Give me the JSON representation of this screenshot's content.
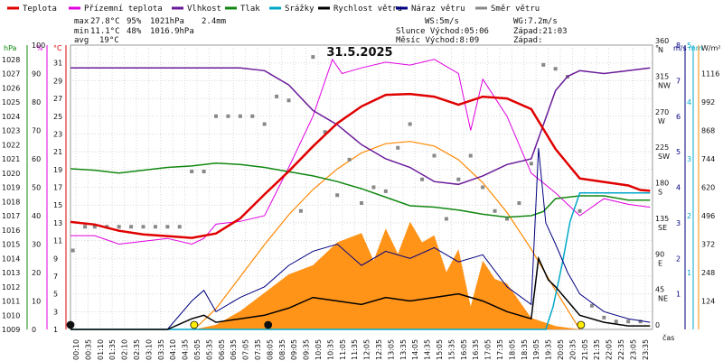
{
  "legend": [
    {
      "label": "Teplota",
      "color": "#e00000"
    },
    {
      "label": "Přízemní teplota",
      "color": "#e000e0"
    },
    {
      "label": "Vlhkost",
      "color": "#6a1b9a"
    },
    {
      "label": "Tlak",
      "color": "#118811"
    },
    {
      "label": "Srážky",
      "color": "#00a8c8"
    },
    {
      "label": "Rychlost větru",
      "color": "#000000"
    },
    {
      "label": "Náraz větru",
      "color": "#000080"
    },
    {
      "label": "Směr větru",
      "color": "#888888"
    }
  ],
  "stats": {
    "max_label": "max",
    "max_temp": "27.8°C",
    "max_hum": "95%",
    "max_press": "1021hPa",
    "max_rain": "2.4mm",
    "min_label": "min",
    "min_temp": "11.1°C",
    "min_hum": "48%",
    "min_press": "1016.9hPa",
    "avg_label": "avg",
    "avg_temp": "19°C",
    "ws": "WS:5m/s",
    "wg": "WG:7.2m/s",
    "sun": "Slunce Východ:05:06",
    "sunset": "Západ:21:03",
    "moon": "Měsíc  Východ:8:09",
    "moonset": "Západ:"
  },
  "chart_data": {
    "type": "line",
    "title": "31.5.2025",
    "x_label": "čas",
    "x_ticks": [
      "00:10",
      "00:35",
      "01:10",
      "01:35",
      "02:10",
      "02:35",
      "03:10",
      "03:35",
      "04:10",
      "04:35",
      "05:05",
      "05:35",
      "06:05",
      "06:35",
      "07:05",
      "07:35",
      "08:05",
      "08:35",
      "09:05",
      "09:35",
      "10:05",
      "10:35",
      "11:05",
      "11:35",
      "12:05",
      "12:35",
      "13:05",
      "13:35",
      "14:05",
      "14:35",
      "15:05",
      "15:35",
      "16:05",
      "16:35",
      "17:05",
      "17:35",
      "18:05",
      "18:35",
      "19:05",
      "19:35",
      "20:05",
      "20:35",
      "21:05",
      "21:35",
      "22:05",
      "22:35",
      "23:05",
      "23:35"
    ],
    "axes": {
      "hpa": {
        "label": "hPa",
        "range": [
          1009,
          1029
        ],
        "color": "#118811"
      },
      "pct": {
        "label": "%",
        "range": [
          0,
          100
        ],
        "color": "#e000e0"
      },
      "degC": {
        "label": "°C",
        "range": [
          1,
          33
        ],
        "color": "#e00000"
      },
      "dir": {
        "label": "°",
        "range": [
          0,
          360
        ],
        "ticks": [
          [
            0,
            ""
          ],
          [
            45,
            "NE"
          ],
          [
            90,
            "E"
          ],
          [
            135,
            "SE"
          ],
          [
            180,
            "S"
          ],
          [
            225,
            "SW"
          ],
          [
            270,
            "W"
          ],
          [
            315,
            "NW"
          ],
          [
            360,
            "N"
          ]
        ]
      },
      "ms": {
        "label": "m/s",
        "range": [
          0,
          8
        ],
        "color": "#000080"
      },
      "mm": {
        "label": "mm",
        "range": [
          0,
          5
        ],
        "color": "#00a8c8"
      },
      "wm2": {
        "label": "W/m²",
        "range": [
          0,
          1240
        ],
        "ticks": [
          124,
          248,
          372,
          496,
          620,
          744,
          868,
          992,
          1116
        ]
      }
    },
    "series": [
      {
        "name": "Teplota",
        "unit": "°C",
        "color": "#e00000",
        "x": [
          0,
          1,
          2,
          3,
          4,
          5,
          6,
          7,
          8,
          9,
          10,
          11,
          12,
          13,
          14,
          15,
          16,
          17,
          18,
          19,
          20,
          21,
          22,
          23,
          23.5,
          23.9
        ],
        "y": [
          13.1,
          12.8,
          12.1,
          11.7,
          11.5,
          11.3,
          11.8,
          13.5,
          16.2,
          18.8,
          21.6,
          24.2,
          26.1,
          27.4,
          27.5,
          27.2,
          26.3,
          27.2,
          27.0,
          25.8,
          21.3,
          18.0,
          17.6,
          17.2,
          16.7,
          16.6
        ]
      },
      {
        "name": "Přízemní teplota",
        "unit": "%",
        "color": "#e000e0",
        "x": [
          0,
          1,
          2,
          3,
          4,
          5,
          5.5,
          6,
          7,
          8,
          9,
          10,
          10.8,
          11.2,
          12,
          13,
          14,
          15,
          16,
          16.5,
          17,
          18,
          19,
          20,
          21,
          22,
          23,
          23.9
        ],
        "y": [
          33,
          33,
          30,
          31,
          32,
          30,
          32,
          37,
          38,
          40,
          57,
          75,
          95,
          90,
          92,
          94,
          93,
          95,
          90,
          70,
          88,
          75,
          55,
          48,
          40,
          46,
          44,
          43
        ]
      },
      {
        "name": "Vlhkost",
        "unit": "%",
        "color": "#6a1b9a",
        "x": [
          0,
          1,
          2,
          3,
          4,
          5,
          6,
          7,
          8,
          9,
          10,
          11,
          12,
          13,
          14,
          15,
          16,
          17,
          18,
          19,
          20,
          20.5,
          21,
          22,
          23,
          23.9
        ],
        "y": [
          92,
          92,
          92,
          92,
          92,
          92,
          92,
          92,
          91,
          86,
          77,
          72,
          65,
          60,
          57,
          52,
          51,
          54,
          58,
          60,
          84,
          89,
          91,
          90,
          91,
          92
        ]
      },
      {
        "name": "Tlak",
        "unit": "hPa",
        "color": "#118811",
        "x": [
          0,
          1,
          2,
          3,
          4,
          5,
          6,
          7,
          8,
          9,
          10,
          11,
          12,
          13,
          14,
          15,
          16,
          17,
          18,
          19,
          19.5,
          20,
          21,
          22,
          23,
          23.9
        ],
        "y": [
          1020.3,
          1020.2,
          1020.0,
          1020.2,
          1020.4,
          1020.5,
          1020.7,
          1020.6,
          1020.4,
          1020.1,
          1019.8,
          1019.4,
          1018.9,
          1018.3,
          1017.7,
          1017.6,
          1017.4,
          1017.1,
          1016.9,
          1017.0,
          1017.3,
          1018.2,
          1018.4,
          1018.4,
          1018.1,
          1018.1
        ]
      },
      {
        "name": "Srážky",
        "unit": "mm",
        "color": "#00a8c8",
        "x": [
          0,
          19.6,
          19.9,
          20.1,
          20.3,
          20.6,
          21,
          22,
          23,
          23.9
        ],
        "y": [
          0,
          0,
          0.4,
          0.8,
          1.2,
          1.9,
          2.4,
          2.4,
          2.4,
          2.4
        ]
      },
      {
        "name": "Rychlost větru",
        "unit": "m/s",
        "color": "#000000",
        "x": [
          0,
          4,
          5,
          5.5,
          6,
          7,
          8,
          9,
          10,
          11,
          12,
          13,
          14,
          15,
          16,
          17,
          18,
          19,
          19.3,
          19.7,
          20,
          20.5,
          21,
          22,
          23,
          23.9
        ],
        "y": [
          0,
          0,
          0.3,
          0.4,
          0.2,
          0.3,
          0.4,
          0.6,
          0.9,
          0.8,
          0.7,
          0.9,
          0.8,
          0.9,
          1.0,
          0.8,
          0.5,
          0.3,
          2.0,
          1.4,
          1.2,
          0.8,
          0.4,
          0.2,
          0.1,
          0.1
        ]
      },
      {
        "name": "Náraz větru",
        "unit": "m/s",
        "color": "#000080",
        "x": [
          0,
          4,
          5,
          5.5,
          6,
          7,
          8,
          9,
          10,
          11,
          12,
          13,
          14,
          15,
          16,
          17,
          18,
          19,
          19.3,
          19.6,
          20,
          20.5,
          21,
          22,
          23,
          23.9
        ],
        "y": [
          0,
          0,
          0.8,
          1.1,
          0.5,
          0.9,
          1.2,
          1.8,
          2.2,
          2.4,
          1.8,
          2.2,
          2.0,
          2.3,
          1.9,
          2.1,
          1.2,
          0.7,
          5.1,
          3.0,
          2.4,
          1.6,
          1.0,
          0.5,
          0.3,
          0.2
        ]
      },
      {
        "name": "Solar",
        "unit": "W/m²",
        "color": "#ff8800",
        "x": [
          5.1,
          6,
          7,
          8,
          9,
          10,
          11,
          12,
          12.5,
          13,
          13.5,
          14,
          14.5,
          15,
          15.5,
          16,
          16.5,
          17,
          17.5,
          18,
          19,
          20,
          21
        ],
        "y": [
          0,
          20,
          80,
          160,
          240,
          280,
          380,
          420,
          300,
          440,
          330,
          470,
          380,
          410,
          250,
          350,
          100,
          300,
          220,
          200,
          50,
          15,
          0
        ]
      },
      {
        "name": "Teoretický solar",
        "unit": "W/m²",
        "color": "#ff8800",
        "x": [
          5.1,
          6,
          7,
          8,
          9,
          10,
          11,
          12,
          13,
          14,
          15,
          16,
          17,
          18,
          19,
          20,
          21
        ],
        "y": [
          0,
          90,
          230,
          370,
          500,
          610,
          700,
          770,
          810,
          820,
          800,
          740,
          640,
          510,
          350,
          170,
          0
        ]
      }
    ],
    "wind_dir": {
      "unit": "°",
      "x": [
        0.1,
        0.6,
        1.0,
        1.5,
        2.0,
        2.5,
        3.0,
        3.5,
        4.0,
        4.5,
        5.0,
        5.5,
        6.0,
        6.5,
        7.0,
        7.5,
        8.0,
        8.5,
        9.0,
        9.5,
        10.0,
        10.5,
        11.0,
        11.5,
        12.0,
        12.5,
        13.0,
        13.5,
        14.0,
        14.5,
        15.0,
        15.5,
        16.0,
        16.5,
        17.0,
        17.5,
        18.0,
        18.5,
        19.0,
        19.5,
        20.0,
        20.5,
        21.0,
        21.5,
        22.0,
        22.5,
        23.0,
        23.5
      ],
      "y": [
        100,
        130,
        130,
        130,
        130,
        130,
        130,
        130,
        130,
        130,
        200,
        200,
        270,
        270,
        270,
        270,
        260,
        295,
        290,
        150,
        345,
        250,
        170,
        215,
        160,
        180,
        175,
        230,
        260,
        190,
        220,
        140,
        190,
        220,
        180,
        150,
        140,
        160,
        210,
        335,
        330,
        320,
        150,
        30,
        15,
        10,
        10,
        10
      ]
    },
    "markers": [
      {
        "name": "sunrise",
        "time": 5.1,
        "color": "#ffee00"
      },
      {
        "name": "moonrise",
        "time": 8.15,
        "color": "#111111"
      },
      {
        "name": "sunset",
        "time": 21.05,
        "color": "#ffee00"
      },
      {
        "name": "midnight-moon",
        "time": 0,
        "color": "#111111"
      }
    ]
  }
}
